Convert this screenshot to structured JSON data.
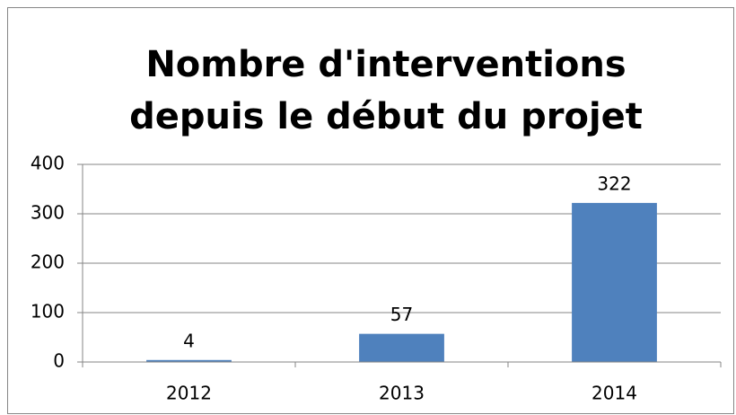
{
  "chart_data": {
    "type": "bar",
    "title": [
      "Nombre d'interventions",
      "depuis le début du projet"
    ],
    "categories": [
      "2012",
      "2013",
      "2014"
    ],
    "values": [
      4,
      57,
      322
    ],
    "color": "#4f81bd",
    "ylim": [
      0,
      400
    ],
    "yticks": [
      0,
      100,
      200,
      300,
      400
    ],
    "grid": true
  }
}
